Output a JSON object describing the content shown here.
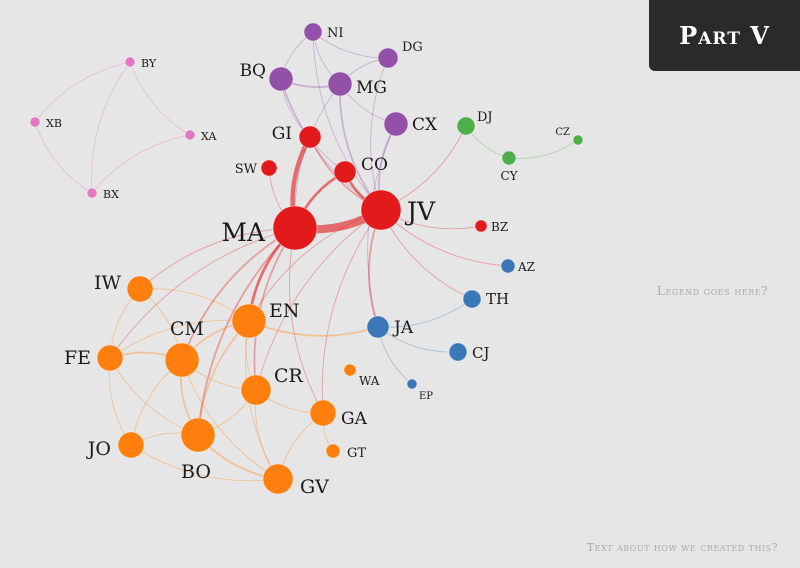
{
  "header": {
    "title": "Part V"
  },
  "legend": {
    "placeholder": "Legend goes here?"
  },
  "footer": {
    "note": "Text about how we created this?"
  },
  "colors": {
    "pink": "#e377c2",
    "purple": "#9350a8",
    "red": "#e31a1c",
    "green": "#4daf4a",
    "blue": "#3a78b9",
    "orange": "#ff7f0e"
  },
  "nodes": [
    {
      "id": "NI",
      "group": "purple",
      "weight": 3
    },
    {
      "id": "DG",
      "group": "purple",
      "weight": 3
    },
    {
      "id": "BQ",
      "group": "purple",
      "weight": 5
    },
    {
      "id": "MG",
      "group": "purple",
      "weight": 5
    },
    {
      "id": "CX",
      "group": "purple",
      "weight": 5
    },
    {
      "id": "GI",
      "group": "red",
      "weight": 4
    },
    {
      "id": "CO",
      "group": "red",
      "weight": 4
    },
    {
      "id": "SW",
      "group": "red",
      "weight": 3
    },
    {
      "id": "MA",
      "group": "red",
      "weight": 14
    },
    {
      "id": "JV",
      "group": "red",
      "weight": 11
    },
    {
      "id": "BZ",
      "group": "red",
      "weight": 1
    },
    {
      "id": "BY",
      "group": "pink",
      "weight": 1
    },
    {
      "id": "XB",
      "group": "pink",
      "weight": 1
    },
    {
      "id": "XA",
      "group": "pink",
      "weight": 1
    },
    {
      "id": "BX",
      "group": "pink",
      "weight": 1
    },
    {
      "id": "DJ",
      "group": "green",
      "weight": 2
    },
    {
      "id": "CY",
      "group": "green",
      "weight": 2
    },
    {
      "id": "CZ",
      "group": "green",
      "weight": 1
    },
    {
      "id": "AZ",
      "group": "blue",
      "weight": 2
    },
    {
      "id": "TH",
      "group": "blue",
      "weight": 3
    },
    {
      "id": "JA",
      "group": "blue",
      "weight": 4
    },
    {
      "id": "CJ",
      "group": "blue",
      "weight": 3
    },
    {
      "id": "EP",
      "group": "blue",
      "weight": 1
    },
    {
      "id": "IW",
      "group": "orange",
      "weight": 5
    },
    {
      "id": "EN",
      "group": "orange",
      "weight": 8
    },
    {
      "id": "CM",
      "group": "orange",
      "weight": 8
    },
    {
      "id": "FE",
      "group": "orange",
      "weight": 5
    },
    {
      "id": "CR",
      "group": "orange",
      "weight": 7
    },
    {
      "id": "WA",
      "group": "orange",
      "weight": 1
    },
    {
      "id": "GA",
      "group": "orange",
      "weight": 5
    },
    {
      "id": "JO",
      "group": "orange",
      "weight": 5
    },
    {
      "id": "BO",
      "group": "orange",
      "weight": 8
    },
    {
      "id": "GT",
      "group": "orange",
      "weight": 2
    },
    {
      "id": "GV",
      "group": "orange",
      "weight": 6
    }
  ],
  "edges": [
    {
      "s": "BY",
      "t": "XB",
      "w": 1
    },
    {
      "s": "BY",
      "t": "XA",
      "w": 1
    },
    {
      "s": "XB",
      "t": "BX",
      "w": 1
    },
    {
      "s": "XA",
      "t": "BX",
      "w": 1
    },
    {
      "s": "BY",
      "t": "BX",
      "w": 1
    },
    {
      "s": "NI",
      "t": "BQ",
      "w": 1
    },
    {
      "s": "NI",
      "t": "MG",
      "w": 1
    },
    {
      "s": "NI",
      "t": "DG",
      "w": 1
    },
    {
      "s": "BQ",
      "t": "MG",
      "w": 2
    },
    {
      "s": "DG",
      "t": "MG",
      "w": 1
    },
    {
      "s": "MG",
      "t": "CX",
      "w": 1
    },
    {
      "s": "BQ",
      "t": "GI",
      "w": 1
    },
    {
      "s": "MG",
      "t": "JV",
      "w": 2
    },
    {
      "s": "BQ",
      "t": "JV",
      "w": 1
    },
    {
      "s": "MG",
      "t": "MA",
      "w": 1
    },
    {
      "s": "CX",
      "t": "JV",
      "w": 2
    },
    {
      "s": "DG",
      "t": "JV",
      "w": 1
    },
    {
      "s": "NI",
      "t": "JV",
      "w": 1
    },
    {
      "s": "CX",
      "t": "JA",
      "w": 1
    },
    {
      "s": "BQ",
      "t": "CO",
      "w": 1
    },
    {
      "s": "GI",
      "t": "MA",
      "w": 5
    },
    {
      "s": "GI",
      "t": "JV",
      "w": 2
    },
    {
      "s": "CO",
      "t": "MA",
      "w": 3
    },
    {
      "s": "CO",
      "t": "JV",
      "w": 3
    },
    {
      "s": "SW",
      "t": "MA",
      "w": 1
    },
    {
      "s": "MA",
      "t": "JV",
      "w": 9
    },
    {
      "s": "JV",
      "t": "BZ",
      "w": 1
    },
    {
      "s": "JV",
      "t": "JA",
      "w": 2
    },
    {
      "s": "JV",
      "t": "DJ",
      "w": 1
    },
    {
      "s": "DJ",
      "t": "CY",
      "w": 1
    },
    {
      "s": "CY",
      "t": "CZ",
      "w": 1
    },
    {
      "s": "JV",
      "t": "TH",
      "w": 1
    },
    {
      "s": "JV",
      "t": "AZ",
      "w": 1
    },
    {
      "s": "JA",
      "t": "TH",
      "w": 1
    },
    {
      "s": "JA",
      "t": "CJ",
      "w": 1
    },
    {
      "s": "JA",
      "t": "EP",
      "w": 1
    },
    {
      "s": "MA",
      "t": "EN",
      "w": 3
    },
    {
      "s": "MA",
      "t": "CM",
      "w": 2
    },
    {
      "s": "MA",
      "t": "IW",
      "w": 1
    },
    {
      "s": "MA",
      "t": "CR",
      "w": 2
    },
    {
      "s": "MA",
      "t": "BO",
      "w": 2
    },
    {
      "s": "MA",
      "t": "GA",
      "w": 1
    },
    {
      "s": "MA",
      "t": "FE",
      "w": 1
    },
    {
      "s": "JV",
      "t": "EN",
      "w": 1
    },
    {
      "s": "JV",
      "t": "CR",
      "w": 1
    },
    {
      "s": "JV",
      "t": "GA",
      "w": 1
    },
    {
      "s": "EN",
      "t": "JA",
      "w": 2
    },
    {
      "s": "EN",
      "t": "CM",
      "w": 2
    },
    {
      "s": "EN",
      "t": "BO",
      "w": 2
    },
    {
      "s": "EN",
      "t": "IW",
      "w": 1
    },
    {
      "s": "EN",
      "t": "FE",
      "w": 1
    },
    {
      "s": "EN",
      "t": "CR",
      "w": 1
    },
    {
      "s": "EN",
      "t": "GV",
      "w": 1
    },
    {
      "s": "CM",
      "t": "FE",
      "w": 2
    },
    {
      "s": "CM",
      "t": "BO",
      "w": 2
    },
    {
      "s": "CM",
      "t": "JO",
      "w": 1
    },
    {
      "s": "CM",
      "t": "CR",
      "w": 1
    },
    {
      "s": "CM",
      "t": "IW",
      "w": 1
    },
    {
      "s": "CM",
      "t": "GV",
      "w": 1
    },
    {
      "s": "FE",
      "t": "JO",
      "w": 1
    },
    {
      "s": "FE",
      "t": "BO",
      "w": 1
    },
    {
      "s": "BO",
      "t": "JO",
      "w": 1
    },
    {
      "s": "BO",
      "t": "GV",
      "w": 2
    },
    {
      "s": "BO",
      "t": "CR",
      "w": 1
    },
    {
      "s": "CR",
      "t": "GA",
      "w": 1
    },
    {
      "s": "CR",
      "t": "GV",
      "w": 1
    },
    {
      "s": "GA",
      "t": "GV",
      "w": 1
    },
    {
      "s": "GA",
      "t": "GT",
      "w": 1
    },
    {
      "s": "IW",
      "t": "FE",
      "w": 1
    },
    {
      "s": "JO",
      "t": "GV",
      "w": 1
    }
  ]
}
